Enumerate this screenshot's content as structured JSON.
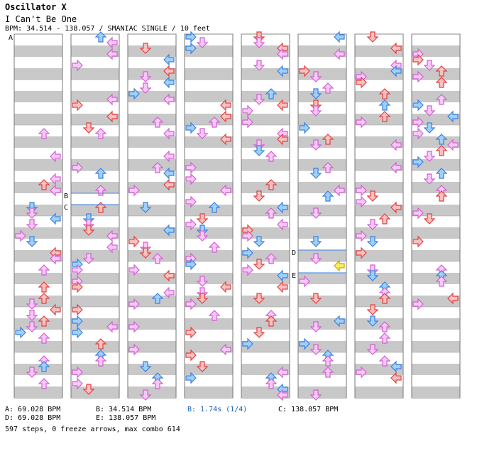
{
  "song": {
    "artist": "Oscillator X",
    "title": "I Can't Be One",
    "bpm_line": "BPM: 34.514 - 138.057 / SMANIAC SINGLE / 10 feet"
  },
  "sections": [
    {
      "letter": "A",
      "label": "A: 69.028 BPM"
    },
    {
      "letter": "B",
      "label": "B: 34.514 BPM"
    },
    {
      "letter": "C",
      "label": "C: 138.057 BPM"
    },
    {
      "letter": "D",
      "label": "D: 69.028 BPM"
    },
    {
      "letter": "E",
      "label": "E: 138.057 BPM"
    }
  ],
  "stop_label": "B: 1.74s (1/4)",
  "summary": "597 steps, 0 freeze arrows, max combo 614",
  "colors": {
    "red_fill": "#f8c0c0",
    "red_stroke": "#e04040",
    "blue_fill": "#a0d0f8",
    "blue_stroke": "#3a80e0",
    "pink_fill": "#f8c8f8",
    "pink_stroke": "#d060d0",
    "yellow_fill": "#f8f060",
    "yellow_stroke": "#c8a800",
    "stripe": "#c8c8c8",
    "column_border": "#777777"
  },
  "chart_layout": {
    "columns": 8,
    "measures_per_column": 8,
    "lanes": [
      "left",
      "down",
      "up",
      "right"
    ]
  }
}
